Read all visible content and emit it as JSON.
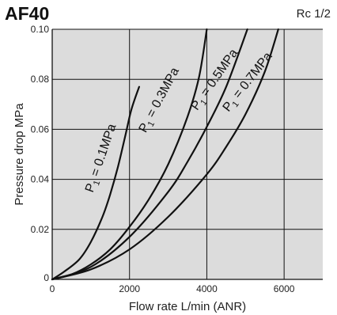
{
  "header": {
    "model": "AF40",
    "port": "Rc 1/2"
  },
  "chart_data": {
    "type": "line",
    "title": "AF40",
    "subtitle": "Rc 1/2",
    "xlabel": "Flow rate  L/min (ANR)",
    "ylabel": "Pressure drop  MPa",
    "xlim": [
      0,
      7000
    ],
    "ylim": [
      0,
      0.1
    ],
    "xticks": [
      0,
      2000,
      4000,
      6000
    ],
    "yticks": [
      0.02,
      0.04,
      0.06,
      0.08,
      0.1
    ],
    "xtick_labels": [
      "0",
      "2000",
      "4000",
      "6000"
    ],
    "ytick_labels": [
      "0.02",
      "0.04",
      "0.06",
      "0.08",
      "0.10"
    ],
    "y_zero_label": "0",
    "grid": true,
    "colors": {
      "plot_bg": "#dcdcdc",
      "line": "#111111",
      "grid": "#111111"
    },
    "series": [
      {
        "name": "P1 = 0.1MPa",
        "label_sub": "1",
        "label_main": "P",
        "label_rest": " = 0.1MPa",
        "x": [
          0,
          300,
          700,
          1000,
          1300,
          1500,
          1700,
          1900,
          2050,
          2250
        ],
        "y": [
          0,
          0.003,
          0.008,
          0.015,
          0.025,
          0.034,
          0.045,
          0.058,
          0.068,
          0.077
        ]
      },
      {
        "name": "P1 = 0.3MPa",
        "label_sub": "1",
        "label_main": "P",
        "label_rest": " = 0.3MPa",
        "x": [
          0,
          500,
          1000,
          1500,
          2000,
          2500,
          3000,
          3500,
          3800,
          4000
        ],
        "y": [
          0,
          0.002,
          0.006,
          0.012,
          0.021,
          0.032,
          0.046,
          0.065,
          0.081,
          0.1
        ]
      },
      {
        "name": "P1 = 0.5MPa",
        "label_sub": "1",
        "label_main": "P",
        "label_rest": " = 0.5MPa",
        "x": [
          0,
          1000,
          2000,
          3000,
          3500,
          4000,
          4500,
          5050
        ],
        "y": [
          0,
          0.005,
          0.017,
          0.035,
          0.047,
          0.061,
          0.077,
          0.1
        ]
      },
      {
        "name": "P1 = 0.7MPa",
        "label_sub": "1",
        "label_main": "P",
        "label_rest": " = 0.7MPa",
        "x": [
          0,
          1000,
          2000,
          3000,
          4000,
          4500,
          5000,
          5500,
          5850
        ],
        "y": [
          0,
          0.004,
          0.012,
          0.025,
          0.042,
          0.053,
          0.066,
          0.083,
          0.1
        ]
      }
    ]
  }
}
